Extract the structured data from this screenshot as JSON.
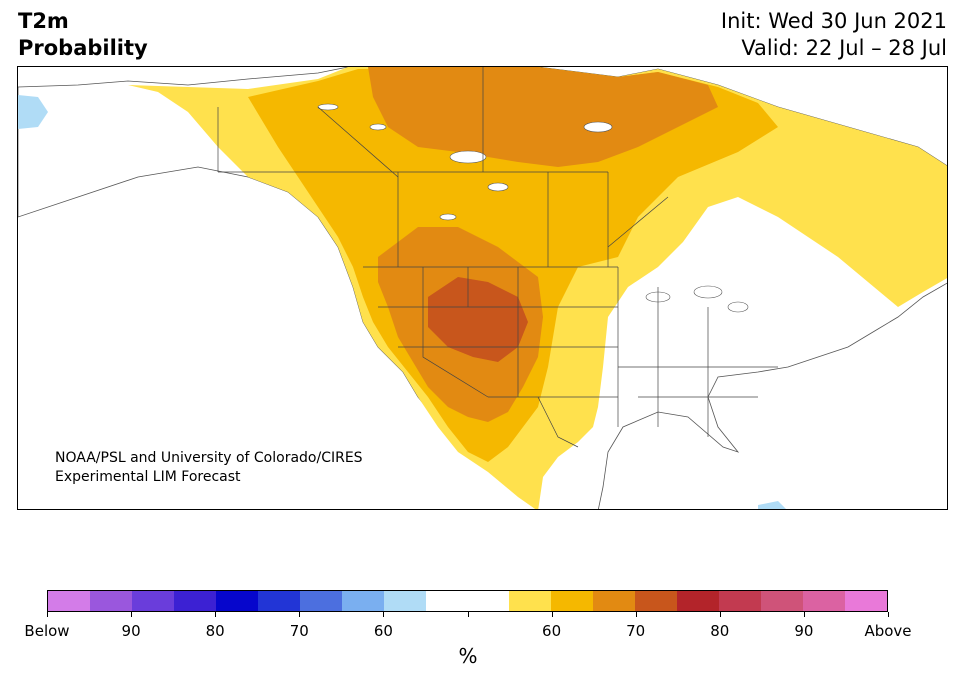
{
  "header": {
    "title_line1": "T2m",
    "title_line2": "Probability",
    "init": "Init: Wed 30 Jun 2021",
    "valid": "Valid: 22 Jul – 28 Jul"
  },
  "credit": {
    "line1": "NOAA/PSL and University of Colorado/CIRES",
    "line2": "Experimental LIM Forecast"
  },
  "colorbar": {
    "colors": [
      "#d37ce8",
      "#9a57dd",
      "#6a3ddb",
      "#3c21d3",
      "#0606cc",
      "#2235d6",
      "#4c6fdf",
      "#7aaff0",
      "#b0dcf6",
      "#ffffff",
      "#ffffff",
      "#ffe14d",
      "#f5b800",
      "#e28a12",
      "#c8561c",
      "#b3242a",
      "#c23a50",
      "#cf5379",
      "#db62a2",
      "#e979d9"
    ],
    "labels": [
      "Below",
      "90",
      "80",
      "70",
      "60",
      "",
      "60",
      "70",
      "80",
      "90",
      "Above"
    ],
    "unit": "%"
  },
  "map": {
    "land_color": "#ffffff",
    "ocean_color": "#ffffff",
    "border_color": "#444444",
    "lake_color": "#ffffff"
  }
}
